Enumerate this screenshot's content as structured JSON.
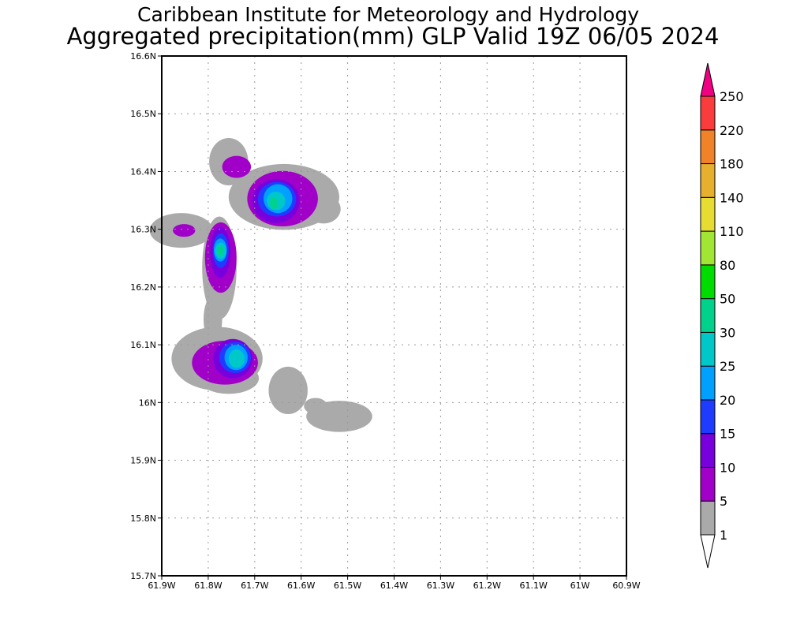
{
  "chart_data": {
    "type": "heatmap",
    "subtype": "filled-contour map",
    "title": "Caribbean Institute for Meteorology and Hydrology",
    "subtitle": "Aggregated precipitation(mm) GLP Valid 19Z 06/05 2024",
    "xlabel": "",
    "ylabel": "",
    "xlim": [
      -61.9,
      -60.9
    ],
    "ylim": [
      15.7,
      16.6
    ],
    "x_ticks": [
      -61.9,
      -61.8,
      -61.7,
      -61.6,
      -61.5,
      -61.4,
      -61.3,
      -61.2,
      -61.1,
      -61.0,
      -60.9
    ],
    "x_tick_labels": [
      "61.9W",
      "61.8W",
      "61.7W",
      "61.6W",
      "61.5W",
      "61.4W",
      "61.3W",
      "61.2W",
      "61.1W",
      "61W",
      "60.9W"
    ],
    "y_ticks": [
      15.7,
      15.8,
      15.9,
      16.0,
      16.1,
      16.2,
      16.3,
      16.4,
      16.5,
      16.6
    ],
    "y_tick_labels": [
      "15.7N",
      "15.8N",
      "15.9N",
      "16N",
      "16.1N",
      "16.2N",
      "16.3N",
      "16.4N",
      "16.5N",
      "16.6N"
    ],
    "grid": true,
    "legend": {
      "placement": "right",
      "levels": [
        "1",
        "5",
        "10",
        "15",
        "20",
        "25",
        "30",
        "50",
        "80",
        "110",
        "140",
        "180",
        "220",
        "250"
      ],
      "colors": [
        "#aaaaaa",
        "#a000c8",
        "#7800dc",
        "#1e3cff",
        "#00a0ff",
        "#00c8c8",
        "#00d28c",
        "#00dc00",
        "#a0e632",
        "#e6dc32",
        "#e6af2d",
        "#f08228",
        "#fa3c3c"
      ],
      "over_color": "#f00082",
      "under_color": "#ffffff"
    },
    "precip_areas": [
      {
        "band": 0,
        "lon": -61.756,
        "lat": 16.417,
        "rlon": 0.042,
        "rlat": 0.041
      },
      {
        "band": 0,
        "lon": -61.637,
        "lat": 16.356,
        "rlon": 0.119,
        "rlat": 0.057
      },
      {
        "band": 0,
        "lon": -61.552,
        "lat": 16.335,
        "rlon": 0.037,
        "rlat": 0.025
      },
      {
        "band": 0,
        "lon": -61.858,
        "lat": 16.298,
        "rlon": 0.068,
        "rlat": 0.03
      },
      {
        "band": 0,
        "lon": -61.776,
        "lat": 16.233,
        "rlon": 0.037,
        "rlat": 0.089
      },
      {
        "band": 0,
        "lon": -61.79,
        "lat": 16.144,
        "rlon": 0.02,
        "rlat": 0.041
      },
      {
        "band": 0,
        "lon": -61.781,
        "lat": 16.076,
        "rlon": 0.098,
        "rlat": 0.055
      },
      {
        "band": 0,
        "lon": -61.756,
        "lat": 16.042,
        "rlon": 0.065,
        "rlat": 0.027
      },
      {
        "band": 0,
        "lon": -61.628,
        "lat": 16.021,
        "rlon": 0.042,
        "rlat": 0.041
      },
      {
        "band": 0,
        "lon": -61.518,
        "lat": 15.976,
        "rlon": 0.071,
        "rlat": 0.027
      },
      {
        "band": 0,
        "lon": -61.569,
        "lat": 15.994,
        "rlon": 0.025,
        "rlat": 0.014
      },
      {
        "band": 1,
        "lon": -61.739,
        "lat": 16.408,
        "rlon": 0.031,
        "rlat": 0.019
      },
      {
        "band": 1,
        "lon": -61.64,
        "lat": 16.353,
        "rlon": 0.076,
        "rlat": 0.048
      },
      {
        "band": 1,
        "lon": -61.852,
        "lat": 16.298,
        "rlon": 0.024,
        "rlat": 0.011
      },
      {
        "band": 1,
        "lon": -61.773,
        "lat": 16.251,
        "rlon": 0.034,
        "rlat": 0.061
      },
      {
        "band": 1,
        "lon": -61.764,
        "lat": 16.069,
        "rlon": 0.071,
        "rlat": 0.038
      },
      {
        "band": 2,
        "lon": -61.654,
        "lat": 16.349,
        "rlon": 0.051,
        "rlat": 0.038
      },
      {
        "band": 2,
        "lon": -61.774,
        "lat": 16.26,
        "rlon": 0.022,
        "rlat": 0.044
      },
      {
        "band": 2,
        "lon": -61.747,
        "lat": 16.076,
        "rlon": 0.042,
        "rlat": 0.034
      },
      {
        "band": 3,
        "lon": -61.652,
        "lat": 16.352,
        "rlon": 0.041,
        "rlat": 0.03
      },
      {
        "band": 3,
        "lon": -61.773,
        "lat": 16.263,
        "rlon": 0.017,
        "rlat": 0.03
      },
      {
        "band": 3,
        "lon": -61.742,
        "lat": 16.078,
        "rlon": 0.034,
        "rlat": 0.027
      },
      {
        "band": 4,
        "lon": -61.65,
        "lat": 16.353,
        "rlon": 0.031,
        "rlat": 0.025
      },
      {
        "band": 4,
        "lon": -61.774,
        "lat": 16.264,
        "rlon": 0.014,
        "rlat": 0.02
      },
      {
        "band": 4,
        "lon": -61.74,
        "lat": 16.078,
        "rlon": 0.025,
        "rlat": 0.022
      },
      {
        "band": 5,
        "lon": -61.654,
        "lat": 16.349,
        "rlon": 0.02,
        "rlat": 0.016
      },
      {
        "band": 5,
        "lon": -61.773,
        "lat": 16.263,
        "rlon": 0.012,
        "rlat": 0.014
      },
      {
        "band": 5,
        "lon": -61.739,
        "lat": 16.076,
        "rlon": 0.017,
        "rlat": 0.016
      },
      {
        "band": 6,
        "lon": -61.659,
        "lat": 16.345,
        "rlon": 0.008,
        "rlat": 0.01
      },
      {
        "band": 6,
        "lon": -61.774,
        "lat": 16.263,
        "rlon": 0.007,
        "rlat": 0.008
      }
    ]
  }
}
